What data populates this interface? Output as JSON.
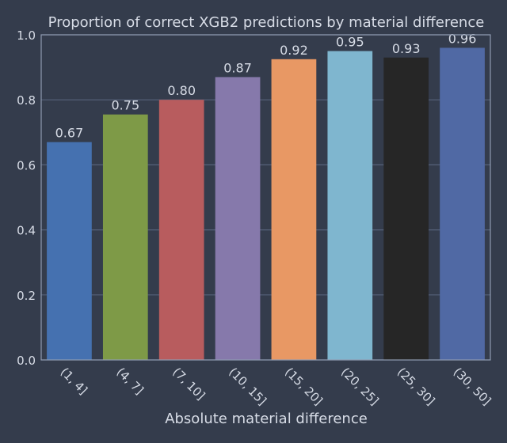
{
  "chart_data": {
    "type": "bar",
    "title": "Proportion of correct XGB2 predictions by material difference",
    "xlabel": "Absolute material difference",
    "ylabel": "",
    "ylim": [
      0,
      1.0
    ],
    "yticks": [
      "0.0",
      "0.2",
      "0.4",
      "0.6",
      "0.8",
      "1.0"
    ],
    "grid": true,
    "categories": [
      "(1, 4]",
      "(4, 7]",
      "(7, 10]",
      "(10, 15]",
      "(15, 20]",
      "(20, 25]",
      "(25, 30]",
      "(30, 50]"
    ],
    "values": [
      0.67,
      0.755,
      0.8,
      0.87,
      0.925,
      0.95,
      0.93,
      0.96
    ],
    "value_labels": [
      "0.67",
      "0.75",
      "0.80",
      "0.87",
      "0.92",
      "0.95",
      "0.93",
      "0.96"
    ],
    "bar_colors": [
      "#4571b0",
      "#7e9a47",
      "#b85c5e",
      "#8679ab",
      "#e89864",
      "#7fb6cf",
      "#262626",
      "#5069a4"
    ]
  },
  "colors": {
    "background": "#343c4c",
    "grid": "#56627a",
    "frame": "#8e9ab0",
    "text": "#d7dce6"
  }
}
